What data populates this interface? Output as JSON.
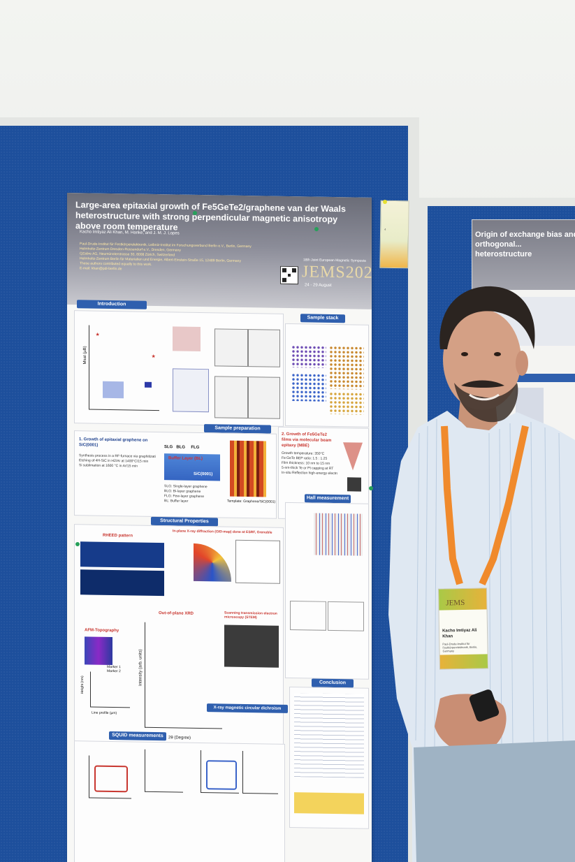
{
  "poster": {
    "title": "Large-area epitaxial growth of Fe5GeTe2/graphene van der Waals heterostructure with strong perpendicular magnetic anisotropy above room temperature",
    "authors": "Kacho Imtiyaz Ali Khan, M. Hanke, and J. M. J. Lopes",
    "affiliations": [
      "Paul-Drude-Institut für Festkörperelektronik, Leibniz-Institut im Forschungsverbund Berlin e.V., Berlin, Germany",
      "Helmholtz-Zentrum Dresden-Rossendorf e.V., Dresden, Germany",
      "QZabre AG, Neumünsterstrasse 30, 8008 Zürich, Switzerland",
      "Helmholtz-Zentrum Berlin für Materialien und Energie, Albert-Einstein-Straße 15, 12489 Berlin, Germany",
      "These authors contributed equally to this work.",
      "E-mail: khan@pdi-berlin.de"
    ],
    "conference_small": "18th Joint European Magnetic Symposia",
    "conference_logo": "JEMS2025",
    "conference_dates": "24 - 29 August",
    "sections": {
      "introduction": "Introduction",
      "sample_stack": "Sample stack",
      "sample_preparation": "Sample preparation",
      "structural_properties": "Structural Properties",
      "hall_measurement": "Hall measurement",
      "conclusion": "Conclusion",
      "squid": "SQUID measurements",
      "xmcd": "X-ray magnetic circular dichroism (XCMD)"
    },
    "panels": {
      "graphene_title": "1. Growth of epitaxial graphene on SiC(0001)",
      "graphene_bullets": [
        "Synthesis process in a RF-furnace via graphitization",
        "Etching of 4H-SiC in H2/Ar at 1400°C/15 min",
        "Si sublimation at 1600 °C in Ar/15 min"
      ],
      "mbe_title": "2. Growth of Fe5GeTe2 films via molecular beam epitaxy (MBE)",
      "mbe_bullets": [
        "Growth temperature: 350°C",
        "Fe:GeTe BEP ratio: 1.5 : 1.25",
        "Film thickness: 10 nm to 15 nm",
        "5-nm-thick Te or Pt capping at RT",
        "In-situ Reflection high-energy electron diffraction (RHEED)"
      ],
      "layers": [
        "SLG",
        "BLG",
        "FLG"
      ],
      "buffer": "Buffer Layer (BL)",
      "sic": "SiC(0001)",
      "legend": [
        "SLG: Single-layer graphene",
        "BLG: Bi-layer graphene",
        "FLG: Few-layer graphene",
        "BL: Buffer layer"
      ],
      "template": "Template: Graphene/SiC(0001)",
      "rheed": "RHEED pattern",
      "gid": "In-plane X-ray diffraction (GID-map) done at ESRF, Grenoble",
      "out_of_plane": "Out-of-plane XRD",
      "afm": "AFM-Topography",
      "stem": "Scanning transmission electron microscopy (STEM)",
      "xrd_x": "2θ (Degree)",
      "xrd_y": "Intensity (arb. units)",
      "afm_x": "Line profile (µm)",
      "afm_y": "Height (nm)",
      "marker1": "Marker 1",
      "marker2": "Marker 2",
      "intro_y": "Msat (µB)"
    }
  },
  "second_poster": {
    "title_visible": "Origin of exchange bias and orthogonal... heterostructure"
  },
  "badge": {
    "logo": "JEMS",
    "name": "Kacho Imtiyaz Ali Khan",
    "affiliation": "Paul-Drude-Institut für Festkörperelektronik, Berlin, Germany"
  },
  "colors": {
    "board": "#1d4f9c",
    "section_header": "#2f5fae",
    "lanyard": "#f08a2c",
    "shirt": "#dfe8f2",
    "jeans": "#9fb3c4"
  }
}
